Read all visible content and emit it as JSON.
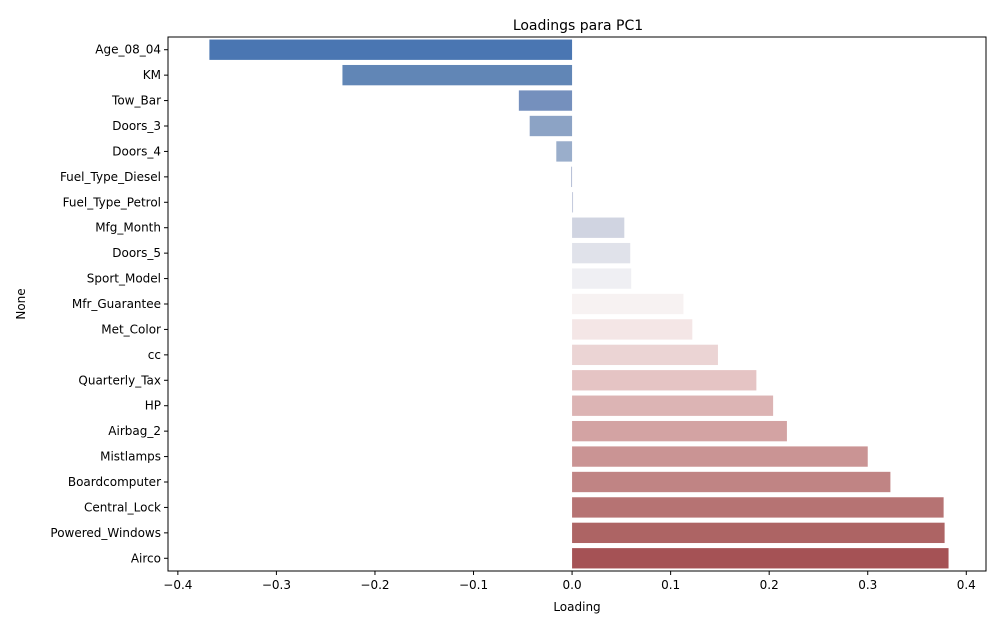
{
  "chart_data": {
    "type": "bar",
    "orientation": "horizontal",
    "title": "Loadings para PC1",
    "xlabel": "Loading",
    "ylabel": "None",
    "xlim": [
      -0.41,
      0.42
    ],
    "xticks": [
      -0.4,
      -0.3,
      -0.2,
      -0.1,
      0.0,
      0.1,
      0.2,
      0.3,
      0.4
    ],
    "xtick_labels": [
      "−0.4",
      "−0.3",
      "−0.2",
      "−0.1",
      "0.0",
      "0.1",
      "0.2",
      "0.3",
      "0.4"
    ],
    "grid": false,
    "palette": "vlag",
    "categories": [
      "Age_08_04",
      "KM",
      "Tow_Bar",
      "Doors_3",
      "Doors_4",
      "Fuel_Type_Diesel",
      "Fuel_Type_Petrol",
      "Mfg_Month",
      "Doors_5",
      "Sport_Model",
      "Mfr_Guarantee",
      "Met_Color",
      "cc",
      "Quarterly_Tax",
      "HP",
      "Airbag_2",
      "Mistlamps",
      "Boardcomputer",
      "Central_Lock",
      "Powered_Windows",
      "Airco"
    ],
    "values": [
      -0.368,
      -0.233,
      -0.054,
      -0.043,
      -0.016,
      -0.001,
      0.001,
      0.053,
      0.059,
      0.06,
      0.113,
      0.122,
      0.148,
      0.187,
      0.204,
      0.218,
      0.3,
      0.323,
      0.377,
      0.378,
      0.382
    ],
    "colors": [
      "#4a76b2",
      "#6186b6",
      "#7590bd",
      "#8ca3c5",
      "#9aaecb",
      "#b3bdd4",
      "#c2c9dc",
      "#d0d4e1",
      "#e0e2ea",
      "#efeff3",
      "#f7f2f2",
      "#f4e6e6",
      "#ebd4d4",
      "#e5c4c4",
      "#dcb4b4",
      "#d3a3a3",
      "#ca9494",
      "#c08484",
      "#b67373",
      "#ad6464",
      "#a55255"
    ]
  }
}
